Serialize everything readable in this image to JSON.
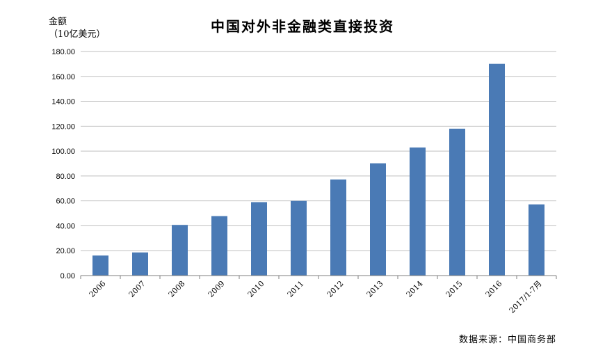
{
  "chart_data": {
    "type": "bar",
    "title": "中国对外非金融类直接投资",
    "ylabel": [
      "金额",
      "（10亿美元）"
    ],
    "xlabel": "",
    "categories": [
      "2006",
      "2007",
      "2008",
      "2009",
      "2010",
      "2011",
      "2012",
      "2013",
      "2014",
      "2015",
      "2016",
      "2017/1-7月"
    ],
    "values": [
      16.1,
      18.6,
      40.7,
      47.8,
      59.0,
      60.0,
      77.2,
      90.2,
      102.9,
      118.0,
      170.1,
      57.2
    ],
    "ylim": [
      0,
      180
    ],
    "yticks": [
      "0.00",
      "20.00",
      "40.00",
      "60.00",
      "80.00",
      "100.00",
      "120.00",
      "140.00",
      "160.00",
      "180.00"
    ],
    "grid": true,
    "bar_color": "#4a7ab5",
    "gridline_color": "#bfbfbf",
    "source": "数据来源：中国商务部"
  }
}
